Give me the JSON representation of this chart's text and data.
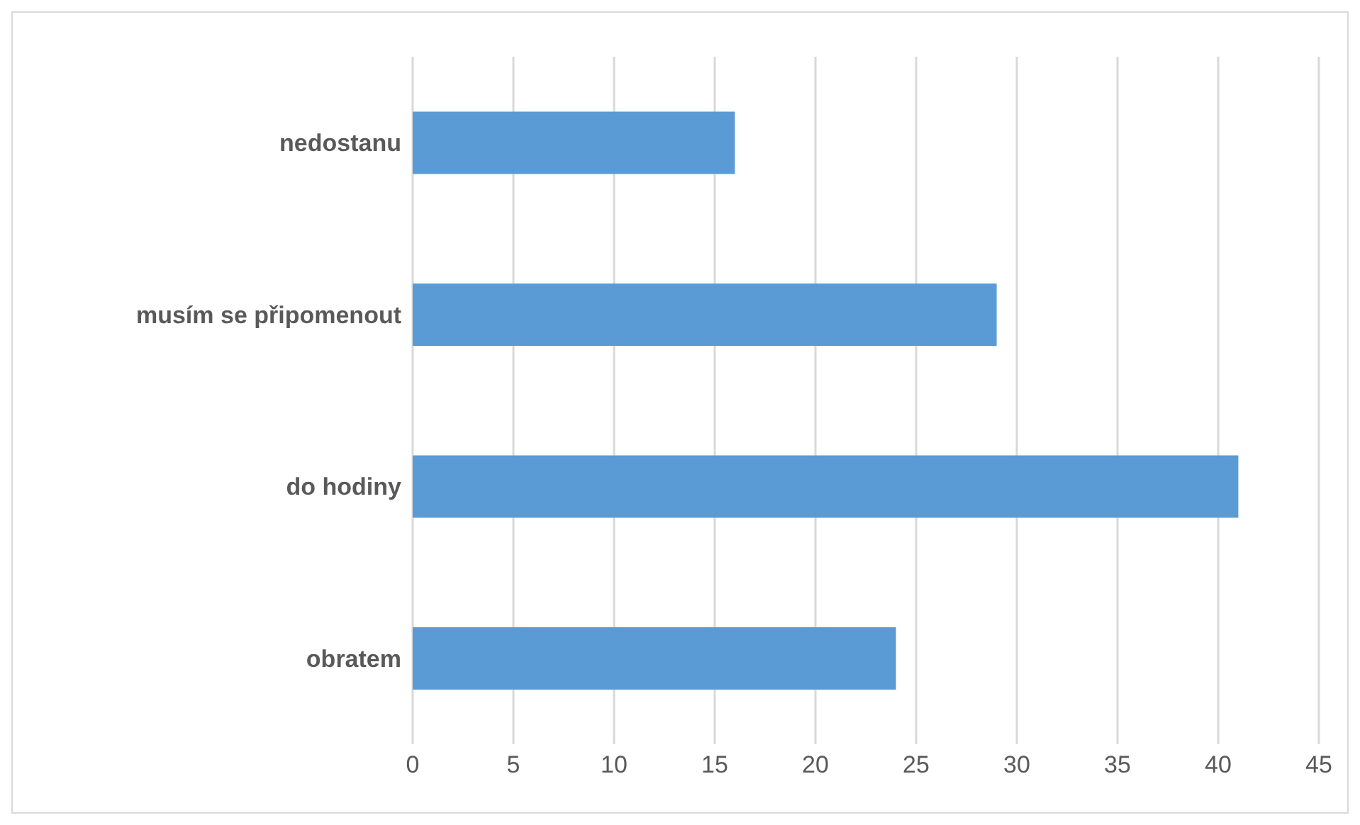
{
  "chart_data": {
    "type": "bar",
    "orientation": "horizontal",
    "categories": [
      "nedostanu",
      "musím se připomenout",
      "do hodiny",
      "obratem"
    ],
    "values": [
      16,
      29,
      41,
      24
    ],
    "color": "#5b9bd5",
    "xlim": [
      0,
      45
    ],
    "xticks": [
      0,
      5,
      10,
      15,
      20,
      25,
      30,
      35,
      40,
      45
    ],
    "grid": "x"
  }
}
